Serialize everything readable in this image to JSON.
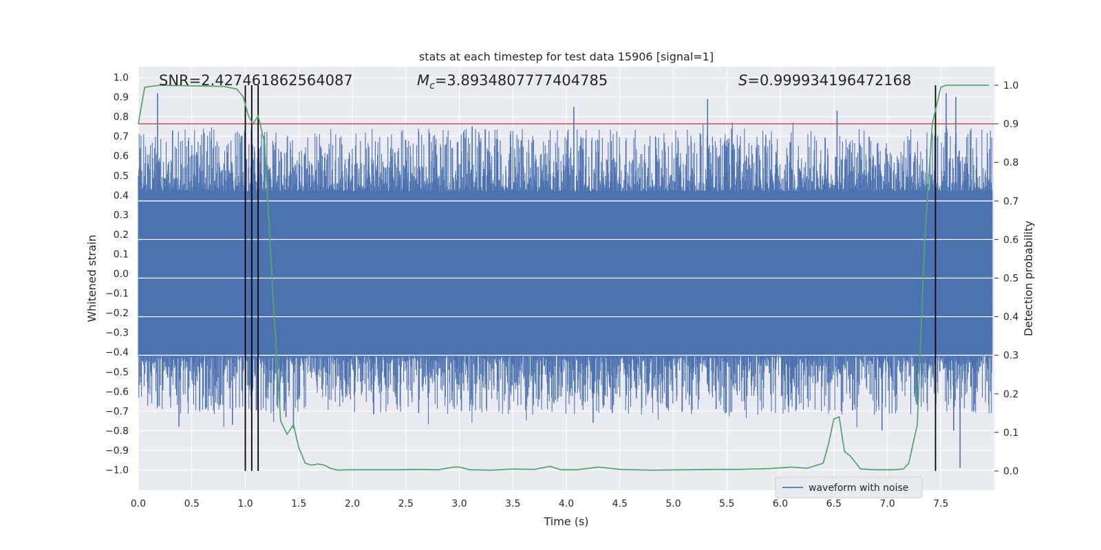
{
  "chart_data": {
    "type": "line",
    "title": "stats at each timestep for test data 15906 [signal=1]",
    "xlabel": "Time (s)",
    "ylabel": "Whitened strain",
    "y2label": "Detection probability",
    "xlim": [
      0.0,
      8.0
    ],
    "ylim": [
      -1.1,
      1.05
    ],
    "y2lim": [
      -0.0482,
      1.037
    ],
    "xticks": [
      "0.0",
      "0.5",
      "1.0",
      "1.5",
      "2.0",
      "2.5",
      "3.0",
      "3.5",
      "4.0",
      "4.5",
      "5.0",
      "5.5",
      "6.0",
      "6.5",
      "7.0",
      "7.5"
    ],
    "yticks": [
      "1.0",
      "0.9",
      "0.8",
      "0.7",
      "0.6",
      "0.5",
      "0.4",
      "0.3",
      "0.2",
      "0.1",
      "0.0",
      "-0.1",
      "-0.2",
      "-0.3",
      "-0.4",
      "-0.5",
      "-0.6",
      "-0.7",
      "-0.8",
      "-0.9",
      "-1.0"
    ],
    "y2ticks": [
      "1.0",
      "0.9",
      "0.8",
      "0.7",
      "0.6",
      "0.5",
      "0.4",
      "0.3",
      "0.2",
      "0.1",
      "0.0"
    ],
    "annotations": {
      "snr": "SNR=2.427461862564087",
      "mc_symbol": "M",
      "mc_sub": "c",
      "mc_value": "=3.8934807777404785",
      "s_symbol": "S",
      "s_value": "=0.999934196472168"
    },
    "legend": {
      "label": "waveform with noise",
      "location": "lower right"
    },
    "threshold": {
      "value": 0.9,
      "color": "#c44e52"
    },
    "vertical_lines": [
      1.0,
      1.06,
      1.12,
      7.45
    ],
    "colors": {
      "waveform": "#4c72b0",
      "probability": "#55a868",
      "vlines": "#000000"
    },
    "waveform": {
      "description": "whitened strain noise, approx. symmetric about 0",
      "envelope_core": 0.42,
      "peak_times": [
        0.18,
        0.32,
        0.38,
        0.88,
        1.38,
        1.45,
        2.62,
        3.02,
        3.12,
        4.07,
        4.25,
        4.43,
        5.32,
        5.4,
        6.53,
        6.95,
        7.55,
        7.62,
        7.64,
        7.68
      ],
      "peak_values": [
        0.92,
        0.73,
        -0.78,
        -0.77,
        -0.73,
        -0.79,
        -0.71,
        -0.7,
        0.75,
        0.85,
        -0.76,
        -0.71,
        0.89,
        -0.69,
        0.83,
        -0.8,
        0.92,
        -0.8,
        0.9,
        -0.99
      ]
    },
    "probability": {
      "x": [
        0.0,
        0.06,
        0.2,
        0.8,
        0.92,
        0.98,
        1.03,
        1.07,
        1.12,
        1.18,
        1.26,
        1.33,
        1.39,
        1.45,
        1.5,
        1.56,
        1.62,
        1.68,
        1.74,
        1.8,
        1.87,
        1.95,
        2.05,
        2.2,
        2.4,
        2.6,
        2.8,
        2.95,
        3.0,
        3.1,
        3.3,
        3.5,
        3.7,
        3.85,
        3.95,
        4.1,
        4.3,
        4.5,
        4.8,
        5.1,
        5.4,
        5.6,
        5.9,
        6.1,
        6.25,
        6.4,
        6.45,
        6.5,
        6.55,
        6.6,
        6.65,
        6.75,
        6.9,
        7.05,
        7.15,
        7.2,
        7.28,
        7.35,
        7.42,
        7.5,
        7.55,
        7.62,
        7.7,
        7.8,
        7.95
      ],
      "y": [
        0.9,
        0.995,
        1.0,
        0.997,
        0.99,
        0.97,
        0.92,
        0.9,
        0.92,
        0.85,
        0.45,
        0.13,
        0.095,
        0.12,
        0.06,
        0.02,
        0.015,
        0.018,
        0.015,
        0.006,
        0.002,
        0.003,
        0.003,
        0.003,
        0.003,
        0.004,
        0.003,
        0.01,
        0.01,
        0.003,
        0.002,
        0.005,
        0.004,
        0.012,
        0.003,
        0.003,
        0.01,
        0.004,
        0.002,
        0.003,
        0.004,
        0.004,
        0.006,
        0.01,
        0.007,
        0.02,
        0.07,
        0.135,
        0.14,
        0.05,
        0.04,
        0.005,
        0.003,
        0.003,
        0.005,
        0.02,
        0.12,
        0.6,
        0.9,
        0.995,
        1.0,
        1.0,
        1.0,
        1.0,
        1.0
      ]
    }
  }
}
